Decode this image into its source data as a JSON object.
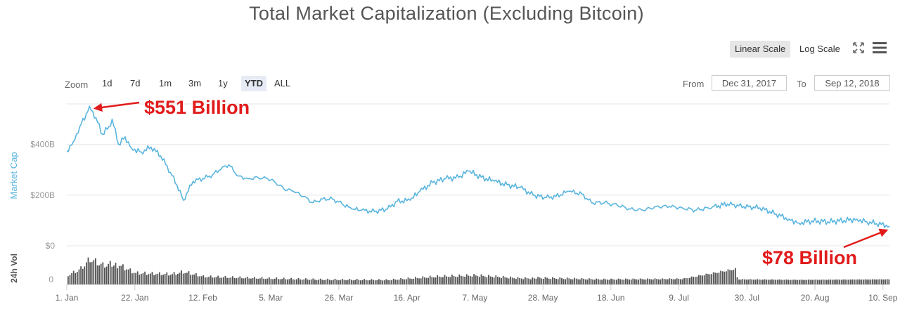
{
  "title": "Total Market Capitalization (Excluding Bitcoin)",
  "scale_buttons": {
    "linear": "Linear Scale",
    "log": "Log Scale",
    "active": "linear"
  },
  "icons": {
    "fullscreen": "fullscreen-icon",
    "menu": "hamburger-menu-icon"
  },
  "zoom": {
    "label": "Zoom",
    "options": [
      "1d",
      "7d",
      "1m",
      "3m",
      "1y",
      "YTD",
      "ALL"
    ],
    "selected": "YTD"
  },
  "range": {
    "from_label": "From",
    "from_value": "Dec 31, 2017",
    "to_label": "To",
    "to_value": "Sep 12, 2018"
  },
  "colors": {
    "line": "#5ab5de",
    "volume": "#555555",
    "annotation": "#e11b1b",
    "grid": "#e6e6e6"
  },
  "chart_data": {
    "type": "line",
    "title": "Total Market Capitalization (Excluding Bitcoin)",
    "ylabel": "Market Cap",
    "y_ticks": [
      "$0",
      "$200B",
      "$400B"
    ],
    "ylim_billion": [
      0,
      560
    ],
    "x_ticks": [
      "1. Jan",
      "22. Jan",
      "12. Feb",
      "5. Mar",
      "26. Mar",
      "16. Apr",
      "7. May",
      "28. May",
      "18. Jun",
      "9. Jul",
      "30. Jul",
      "20. Aug",
      "10. Sep"
    ],
    "x_range": [
      "2018-01-01",
      "2018-09-12"
    ],
    "series": [
      {
        "unit": "billion USD",
        "points": [
          [
            "2018-01-01",
            375
          ],
          [
            "2018-01-03",
            410
          ],
          [
            "2018-01-05",
            470
          ],
          [
            "2018-01-07",
            520
          ],
          [
            "2018-01-08",
            551
          ],
          [
            "2018-01-10",
            505
          ],
          [
            "2018-01-12",
            440
          ],
          [
            "2018-01-14",
            470
          ],
          [
            "2018-01-15",
            500
          ],
          [
            "2018-01-17",
            400
          ],
          [
            "2018-01-19",
            430
          ],
          [
            "2018-01-21",
            385
          ],
          [
            "2018-01-24",
            370
          ],
          [
            "2018-01-27",
            390
          ],
          [
            "2018-01-30",
            355
          ],
          [
            "2018-02-02",
            290
          ],
          [
            "2018-02-04",
            240
          ],
          [
            "2018-02-06",
            180
          ],
          [
            "2018-02-09",
            255
          ],
          [
            "2018-02-12",
            265
          ],
          [
            "2018-02-15",
            280
          ],
          [
            "2018-02-18",
            310
          ],
          [
            "2018-02-20",
            320
          ],
          [
            "2018-02-23",
            275
          ],
          [
            "2018-02-26",
            265
          ],
          [
            "2018-03-01",
            270
          ],
          [
            "2018-03-04",
            265
          ],
          [
            "2018-03-06",
            255
          ],
          [
            "2018-03-09",
            225
          ],
          [
            "2018-03-12",
            215
          ],
          [
            "2018-03-15",
            195
          ],
          [
            "2018-03-18",
            170
          ],
          [
            "2018-03-21",
            185
          ],
          [
            "2018-03-24",
            185
          ],
          [
            "2018-03-27",
            165
          ],
          [
            "2018-03-30",
            145
          ],
          [
            "2018-04-02",
            140
          ],
          [
            "2018-04-06",
            135
          ],
          [
            "2018-04-10",
            145
          ],
          [
            "2018-04-13",
            175
          ],
          [
            "2018-04-17",
            180
          ],
          [
            "2018-04-20",
            215
          ],
          [
            "2018-04-24",
            250
          ],
          [
            "2018-04-28",
            265
          ],
          [
            "2018-05-02",
            270
          ],
          [
            "2018-05-05",
            295
          ],
          [
            "2018-05-09",
            270
          ],
          [
            "2018-05-13",
            255
          ],
          [
            "2018-05-17",
            240
          ],
          [
            "2018-05-21",
            230
          ],
          [
            "2018-05-25",
            200
          ],
          [
            "2018-05-29",
            190
          ],
          [
            "2018-06-01",
            195
          ],
          [
            "2018-06-05",
            215
          ],
          [
            "2018-06-09",
            205
          ],
          [
            "2018-06-12",
            170
          ],
          [
            "2018-06-16",
            170
          ],
          [
            "2018-06-20",
            160
          ],
          [
            "2018-06-24",
            145
          ],
          [
            "2018-06-28",
            140
          ],
          [
            "2018-07-02",
            155
          ],
          [
            "2018-07-06",
            155
          ],
          [
            "2018-07-10",
            150
          ],
          [
            "2018-07-14",
            140
          ],
          [
            "2018-07-18",
            150
          ],
          [
            "2018-07-24",
            165
          ],
          [
            "2018-07-29",
            155
          ],
          [
            "2018-08-03",
            150
          ],
          [
            "2018-08-08",
            125
          ],
          [
            "2018-08-12",
            105
          ],
          [
            "2018-08-15",
            90
          ],
          [
            "2018-08-19",
            98
          ],
          [
            "2018-08-24",
            95
          ],
          [
            "2018-08-29",
            100
          ],
          [
            "2018-09-02",
            105
          ],
          [
            "2018-09-05",
            95
          ],
          [
            "2018-09-08",
            88
          ],
          [
            "2018-09-12",
            78
          ]
        ]
      }
    ],
    "volume": {
      "ylabel": "24h Vol",
      "y_ticks": [
        "0"
      ],
      "relative_levels": [
        [
          "2018-01-01",
          0.35
        ],
        [
          "2018-01-05",
          0.6
        ],
        [
          "2018-01-08",
          1.0
        ],
        [
          "2018-01-12",
          0.75
        ],
        [
          "2018-01-17",
          0.85
        ],
        [
          "2018-01-22",
          0.5
        ],
        [
          "2018-02-02",
          0.45
        ],
        [
          "2018-02-06",
          0.55
        ],
        [
          "2018-02-12",
          0.35
        ],
        [
          "2018-03-01",
          0.28
        ],
        [
          "2018-03-20",
          0.22
        ],
        [
          "2018-04-10",
          0.2
        ],
        [
          "2018-04-25",
          0.35
        ],
        [
          "2018-05-07",
          0.4
        ],
        [
          "2018-05-20",
          0.28
        ],
        [
          "2018-06-15",
          0.2
        ],
        [
          "2018-07-10",
          0.22
        ],
        [
          "2018-07-26",
          0.6
        ],
        [
          "2018-07-27",
          0.2
        ],
        [
          "2018-08-15",
          0.18
        ],
        [
          "2018-09-12",
          0.2
        ]
      ]
    },
    "annotations": [
      {
        "text": "$551 Billion",
        "date": "2018-01-08",
        "value": 551
      },
      {
        "text": "$78 Billion",
        "date": "2018-09-12",
        "value": 78
      }
    ]
  }
}
